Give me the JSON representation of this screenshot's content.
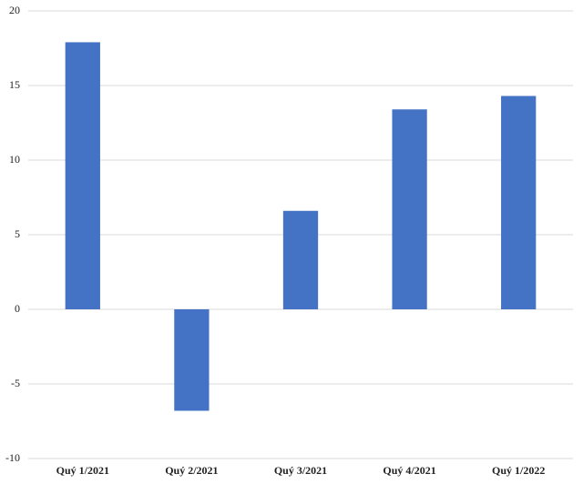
{
  "chart_data": {
    "type": "bar",
    "categories": [
      "Quý 1/2021",
      "Quý 2/2021",
      "Quý 3/2021",
      "Quý 4/2021",
      "Quý 1/2022"
    ],
    "values": [
      17.9,
      -6.8,
      6.6,
      13.4,
      14.3
    ],
    "color": "#4472c4",
    "ylim": [
      -10,
      20
    ],
    "yticks": [
      -10,
      -5,
      0,
      5,
      10,
      15,
      20
    ],
    "grid": true
  }
}
